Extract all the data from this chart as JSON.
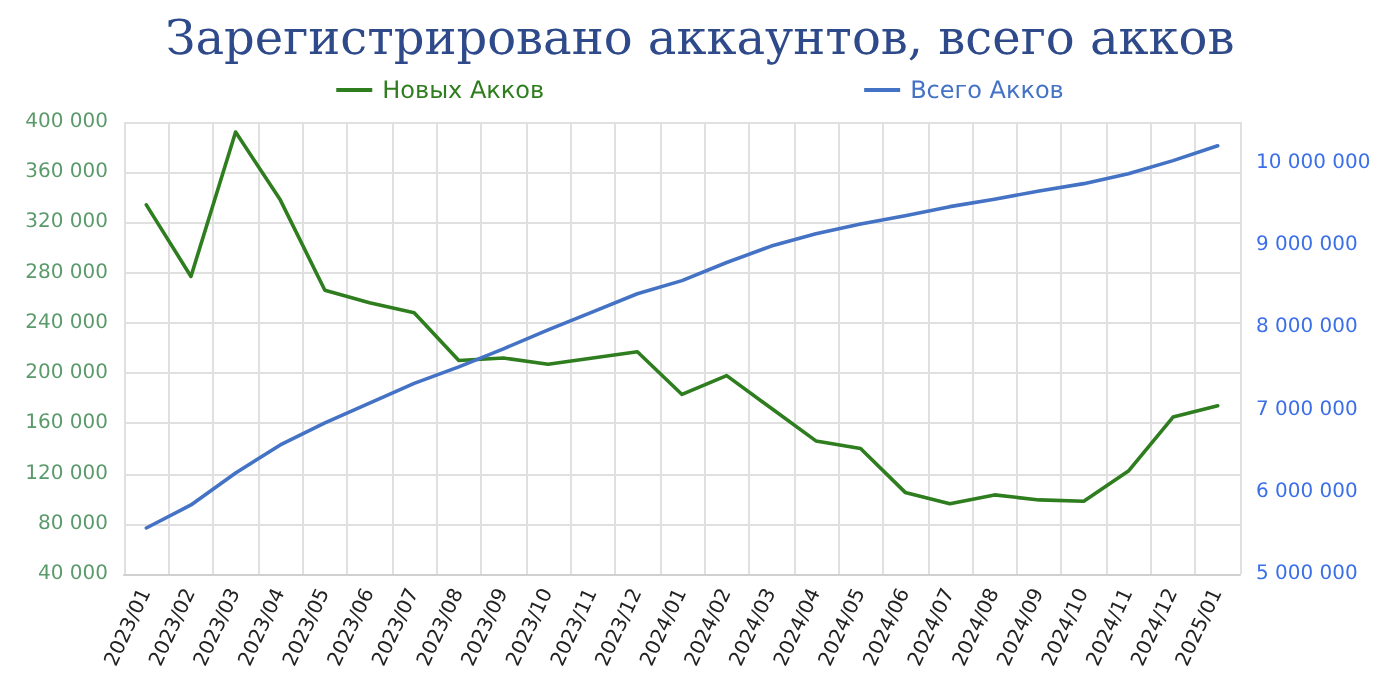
{
  "chart_data": {
    "type": "line",
    "title": "Зарегистрировано аккаунтов, всего акков",
    "categories": [
      "2023/01",
      "2023/02",
      "2023/03",
      "2023/04",
      "2023/05",
      "2023/06",
      "2023/07",
      "2023/08",
      "2023/09",
      "2023/10",
      "2023/11",
      "2023/12",
      "2024/01",
      "2024/02",
      "2024/03",
      "2024/04",
      "2024/05",
      "2024/06",
      "2024/07",
      "2024/08",
      "2024/09",
      "2024/10",
      "2024/11",
      "2024/12",
      "2025/01"
    ],
    "series": [
      {
        "name": "Новых Акков",
        "color": "#2e7d1e",
        "values": [
          334000,
          277000,
          392000,
          338000,
          266000,
          256000,
          248000,
          210000,
          212000,
          207000,
          212000,
          217000,
          183000,
          198000,
          172000,
          146000,
          140000,
          105000,
          96000,
          103000,
          99000,
          98000,
          122000,
          165000,
          174000
        ]
      },
      {
        "name": "Всего Акков",
        "color": "#4472c4",
        "axis": "y2",
        "values": [
          5560000,
          5840000,
          6230000,
          6570000,
          6840000,
          7080000,
          7320000,
          7520000,
          7740000,
          7970000,
          8190000,
          8410000,
          8570000,
          8790000,
          8990000,
          9140000,
          9260000,
          9360000,
          9470000,
          9560000,
          9660000,
          9750000,
          9870000,
          10030000,
          10210000
        ]
      }
    ],
    "ylim": [
      40000,
      400000
    ],
    "yticks": [
      40000,
      80000,
      120000,
      160000,
      200000,
      240000,
      280000,
      320000,
      360000,
      400000
    ],
    "y2lim": [
      5000000,
      10500000
    ],
    "y2ticks": [
      5000000,
      6000000,
      7000000,
      8000000,
      9000000,
      10000000
    ],
    "grid": true,
    "legend": "top",
    "marker": "none",
    "line_style": "solid"
  }
}
